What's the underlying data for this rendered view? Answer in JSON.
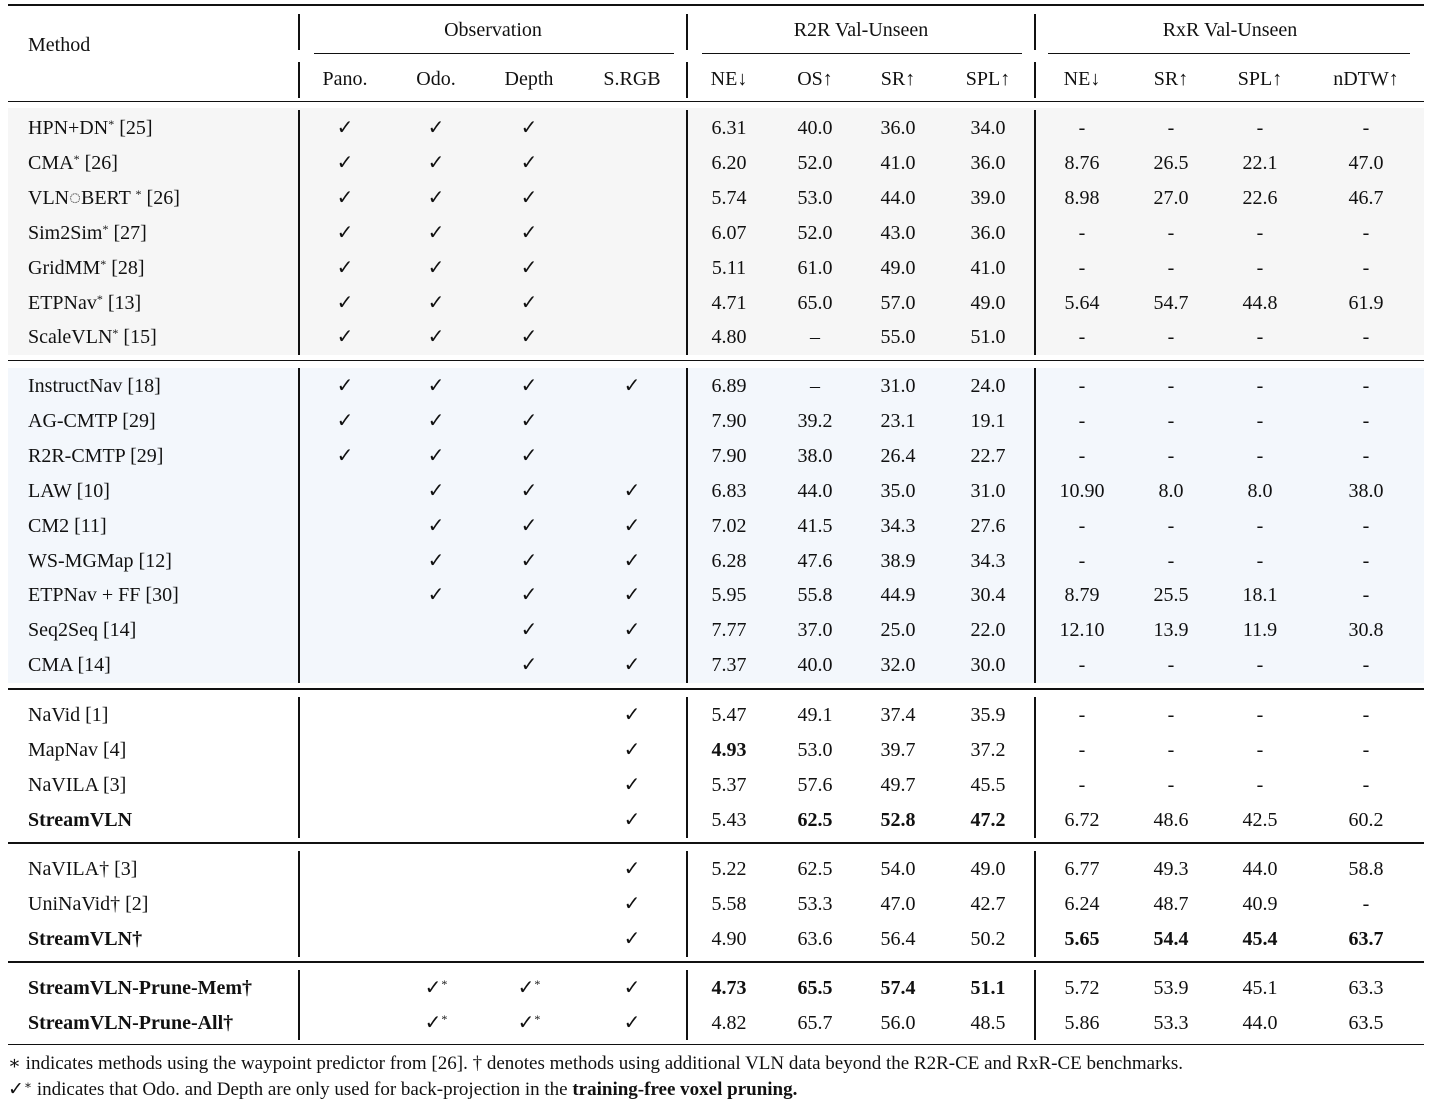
{
  "header": {
    "method": "Method",
    "groups": [
      {
        "label": "Observation",
        "x1": 0,
        "x2": 3
      },
      {
        "label": "R2R Val-Unseen",
        "x1": 4,
        "x2": 7
      },
      {
        "label": "RxR Val-Unseen",
        "x1": 8,
        "x2": 11
      }
    ],
    "columns": [
      "Pano.",
      "Odo.",
      "Depth",
      "S.RGB",
      "NE↓",
      "OS↑",
      "SR↑",
      "SPL↑",
      "NE↓",
      "SR↑",
      "SPL↑",
      "nDTW↑"
    ]
  },
  "sections": [
    {
      "shade": "#f6f6f6",
      "rows": [
        {
          "method": "HPN+DN",
          "sup": "*",
          "ref": "[25]",
          "bold": false,
          "obs": [
            "✓",
            "✓",
            "✓",
            ""
          ],
          "vals": [
            "6.31",
            "40.0",
            "36.0",
            "34.0",
            "-",
            "-",
            "-",
            "-"
          ],
          "boldIdx": []
        },
        {
          "method": "CMA",
          "sup": "*",
          "ref": "[26]",
          "bold": false,
          "obs": [
            "✓",
            "✓",
            "✓",
            ""
          ],
          "vals": [
            "6.20",
            "52.0",
            "41.0",
            "36.0",
            "8.76",
            "26.5",
            "22.1",
            "47.0"
          ],
          "boldIdx": []
        },
        {
          "method": "VLN◌BERT ",
          "sup": "*",
          "ref": "[26]",
          "bold": false,
          "obs": [
            "✓",
            "✓",
            "✓",
            ""
          ],
          "vals": [
            "5.74",
            "53.0",
            "44.0",
            "39.0",
            "8.98",
            "27.0",
            "22.6",
            "46.7"
          ],
          "boldIdx": []
        },
        {
          "method": "Sim2Sim",
          "sup": "*",
          "ref": "[27]",
          "bold": false,
          "obs": [
            "✓",
            "✓",
            "✓",
            ""
          ],
          "vals": [
            "6.07",
            "52.0",
            "43.0",
            "36.0",
            "-",
            "-",
            "-",
            "-"
          ],
          "boldIdx": []
        },
        {
          "method": "GridMM",
          "sup": "*",
          "ref": "[28]",
          "bold": false,
          "obs": [
            "✓",
            "✓",
            "✓",
            ""
          ],
          "vals": [
            "5.11",
            "61.0",
            "49.0",
            "41.0",
            "-",
            "-",
            "-",
            "-"
          ],
          "boldIdx": []
        },
        {
          "method": "ETPNav",
          "sup": "*",
          "ref": "[13]",
          "bold": false,
          "obs": [
            "✓",
            "✓",
            "✓",
            ""
          ],
          "vals": [
            "4.71",
            "65.0",
            "57.0",
            "49.0",
            "5.64",
            "54.7",
            "44.8",
            "61.9"
          ],
          "boldIdx": []
        },
        {
          "method": "ScaleVLN",
          "sup": "*",
          "ref": "[15]",
          "bold": false,
          "obs": [
            "✓",
            "✓",
            "✓",
            ""
          ],
          "vals": [
            "4.80",
            "–",
            "55.0",
            "51.0",
            "-",
            "-",
            "-",
            "-"
          ],
          "boldIdx": []
        }
      ]
    },
    {
      "shade": "#f3f7fc",
      "rows": [
        {
          "method": "InstructNav",
          "sup": "",
          "ref": "[18]",
          "bold": false,
          "obs": [
            "✓",
            "✓",
            "✓",
            "✓"
          ],
          "vals": [
            "6.89",
            "–",
            "31.0",
            "24.0",
            "-",
            "-",
            "-",
            "-"
          ],
          "boldIdx": []
        },
        {
          "method": "AG-CMTP",
          "sup": "",
          "ref": "[29]",
          "bold": false,
          "obs": [
            "✓",
            "✓",
            "✓",
            ""
          ],
          "vals": [
            "7.90",
            "39.2",
            "23.1",
            "19.1",
            "-",
            "-",
            "-",
            "-"
          ],
          "boldIdx": []
        },
        {
          "method": "R2R-CMTP",
          "sup": "",
          "ref": "[29]",
          "bold": false,
          "obs": [
            "✓",
            "✓",
            "✓",
            ""
          ],
          "vals": [
            "7.90",
            "38.0",
            "26.4",
            "22.7",
            "-",
            "-",
            "-",
            "-"
          ],
          "boldIdx": []
        },
        {
          "method": "LAW",
          "sup": "",
          "ref": "[10]",
          "bold": false,
          "obs": [
            "",
            "✓",
            "✓",
            "✓"
          ],
          "vals": [
            "6.83",
            "44.0",
            "35.0",
            "31.0",
            "10.90",
            "8.0",
            "8.0",
            "38.0"
          ],
          "boldIdx": []
        },
        {
          "method": "CM2",
          "sup": "",
          "ref": "[11]",
          "bold": false,
          "obs": [
            "",
            "✓",
            "✓",
            "✓"
          ],
          "vals": [
            "7.02",
            "41.5",
            "34.3",
            "27.6",
            "-",
            "-",
            "-",
            "-"
          ],
          "boldIdx": []
        },
        {
          "method": "WS-MGMap",
          "sup": "",
          "ref": "[12]",
          "bold": false,
          "obs": [
            "",
            "✓",
            "✓",
            "✓"
          ],
          "vals": [
            "6.28",
            "47.6",
            "38.9",
            "34.3",
            "-",
            "-",
            "-",
            "-"
          ],
          "boldIdx": []
        },
        {
          "method": "ETPNav + FF",
          "sup": "",
          "ref": "[30]",
          "bold": false,
          "obs": [
            "",
            "✓",
            "✓",
            "✓"
          ],
          "vals": [
            "5.95",
            "55.8",
            "44.9",
            "30.4",
            "8.79",
            "25.5",
            "18.1",
            "-"
          ],
          "boldIdx": []
        },
        {
          "method": "Seq2Seq",
          "sup": "",
          "ref": "[14]",
          "bold": false,
          "obs": [
            "",
            "",
            "✓",
            "✓"
          ],
          "vals": [
            "7.77",
            "37.0",
            "25.0",
            "22.0",
            "12.10",
            "13.9",
            "11.9",
            "30.8"
          ],
          "boldIdx": []
        },
        {
          "method": "CMA",
          "sup": "",
          "ref": "[14]",
          "bold": false,
          "obs": [
            "",
            "",
            "✓",
            "✓"
          ],
          "vals": [
            "7.37",
            "40.0",
            "32.0",
            "30.0",
            "-",
            "-",
            "-",
            "-"
          ],
          "boldIdx": []
        }
      ]
    },
    {
      "shade": "",
      "rows": [
        {
          "method": "NaVid",
          "sup": "",
          "ref": "[1]",
          "bold": false,
          "obs": [
            "",
            "",
            "",
            "✓"
          ],
          "vals": [
            "5.47",
            "49.1",
            "37.4",
            "35.9",
            "-",
            "-",
            "-",
            "-"
          ],
          "boldIdx": []
        },
        {
          "method": "MapNav",
          "sup": "",
          "ref": "[4]",
          "bold": false,
          "obs": [
            "",
            "",
            "",
            "✓"
          ],
          "vals": [
            "4.93",
            "53.0",
            "39.7",
            "37.2",
            "-",
            "-",
            "-",
            "-"
          ],
          "boldIdx": [
            0
          ]
        },
        {
          "method": "NaVILA",
          "sup": "",
          "ref": "[3]",
          "bold": false,
          "obs": [
            "",
            "",
            "",
            "✓"
          ],
          "vals": [
            "5.37",
            "57.6",
            "49.7",
            "45.5",
            "-",
            "-",
            "-",
            "-"
          ],
          "boldIdx": []
        },
        {
          "method": "StreamVLN",
          "sup": "",
          "ref": "",
          "bold": true,
          "obs": [
            "",
            "",
            "",
            "✓"
          ],
          "vals": [
            "5.43",
            "62.5",
            "52.8",
            "47.2",
            "6.72",
            "48.6",
            "42.5",
            "60.2"
          ],
          "boldIdx": [
            1,
            2,
            3
          ]
        }
      ]
    },
    {
      "shade": "",
      "rows": [
        {
          "method": "NaVILA†",
          "sup": "",
          "ref": "[3]",
          "bold": false,
          "obs": [
            "",
            "",
            "",
            "✓"
          ],
          "vals": [
            "5.22",
            "62.5",
            "54.0",
            "49.0",
            "6.77",
            "49.3",
            "44.0",
            "58.8"
          ],
          "boldIdx": []
        },
        {
          "method": "UniNaVid†",
          "sup": "",
          "ref": "[2]",
          "bold": false,
          "obs": [
            "",
            "",
            "",
            "✓"
          ],
          "vals": [
            "5.58",
            "53.3",
            "47.0",
            "42.7",
            "6.24",
            "48.7",
            "40.9",
            "-"
          ],
          "boldIdx": []
        },
        {
          "method": "StreamVLN†",
          "sup": "",
          "ref": "",
          "bold": true,
          "obs": [
            "",
            "",
            "",
            "✓"
          ],
          "vals": [
            "4.90",
            "63.6",
            "56.4",
            "50.2",
            "5.65",
            "54.4",
            "45.4",
            "63.7"
          ],
          "boldIdx": [
            4,
            5,
            6,
            7
          ]
        }
      ]
    },
    {
      "shade": "",
      "rows": [
        {
          "method": "StreamVLN-Prune-Mem†",
          "sup": "",
          "ref": "",
          "bold": true,
          "obs": [
            "",
            "✓*",
            "✓*",
            "✓"
          ],
          "vals": [
            "4.73",
            "65.5",
            "57.4",
            "51.1",
            "5.72",
            "53.9",
            "45.1",
            "63.3"
          ],
          "boldIdx": [
            0,
            1,
            2,
            3
          ]
        },
        {
          "method": "StreamVLN-Prune-All†",
          "sup": "",
          "ref": "",
          "bold": true,
          "obs": [
            "",
            "✓*",
            "✓*",
            "✓"
          ],
          "vals": [
            "4.82",
            "65.7",
            "56.0",
            "48.5",
            "5.86",
            "53.3",
            "44.0",
            "63.5"
          ],
          "boldIdx": []
        }
      ]
    }
  ],
  "footnotes": {
    "line1": "∗ indicates methods using the waypoint predictor from [26]. † denotes methods using additional VLN data beyond the R2R-CE and RxR-CE benchmarks.",
    "line2_prefix": "✓",
    "line2_sup": "∗",
    "line2_text": " indicates that Odo. and Depth are only used for back-projection in the ",
    "line2_bold": "training-free voxel pruning."
  }
}
